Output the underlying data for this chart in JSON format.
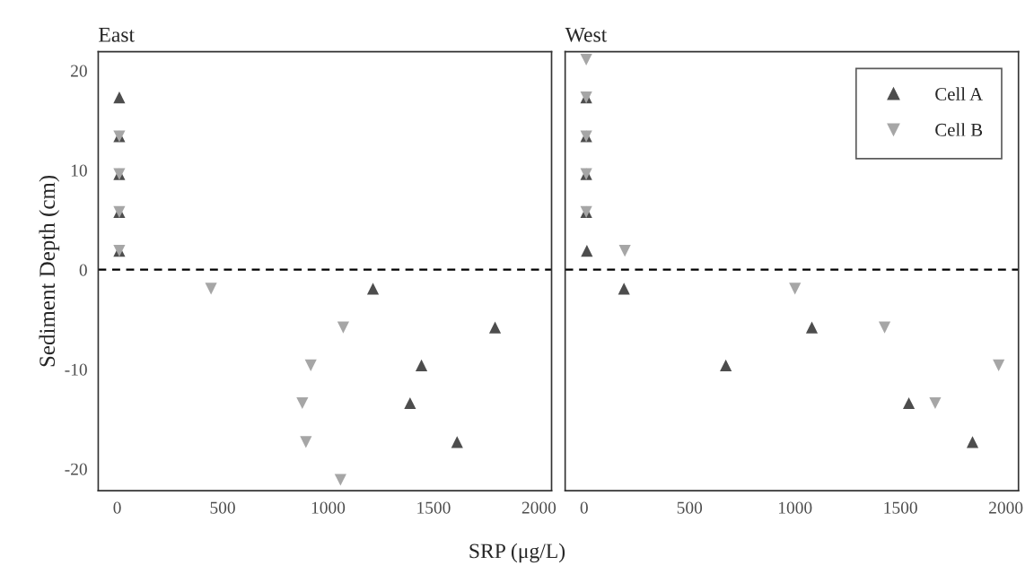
{
  "chart_data": [
    {
      "type": "scatter",
      "title": "East",
      "xlabel": "SRP (μg/L)",
      "ylabel": "Sediment Depth (cm)",
      "xlim": [
        -90,
        2060
      ],
      "xticks": [
        0,
        500,
        1000,
        1500,
        2000
      ],
      "ylim": [
        -22.2,
        21.9
      ],
      "yticks": [
        -20,
        -10,
        0,
        10,
        20
      ],
      "grid": false,
      "legend": false,
      "ref_lines": [
        {
          "axis": "y",
          "value": 0,
          "color": "#000000",
          "line_style": "dashed"
        }
      ],
      "series": [
        {
          "color": "#4d4d4d",
          "marker": "triangle",
          "x": [
            10,
            10,
            10,
            10,
            10,
            1213,
            1792,
            1443,
            1389,
            1612
          ],
          "values": [
            17.3,
            13.4,
            9.6,
            5.8,
            1.9,
            -1.9,
            -5.8,
            -9.6,
            -13.4,
            -17.3
          ]
        },
        {
          "color": "#a6a6a6",
          "marker": "triangle_down",
          "x": [
            10,
            10,
            10,
            10,
            445,
            1072,
            918,
            878,
            895,
            1059
          ],
          "values": [
            13.4,
            9.6,
            5.8,
            1.9,
            -1.9,
            -5.8,
            -9.6,
            -13.4,
            -17.3,
            -21.1
          ]
        }
      ]
    },
    {
      "type": "scatter",
      "title": "West",
      "xlim": [
        -90,
        2060
      ],
      "xticks": [
        0,
        500,
        1000,
        1500,
        2000
      ],
      "ylim": [
        -22.2,
        21.9
      ],
      "yticks": [
        -20,
        -10,
        0,
        10,
        20
      ],
      "tick_labels": "x",
      "grid": false,
      "legend": "top right",
      "ref_lines": [
        {
          "axis": "y",
          "value": 0,
          "color": "#000000",
          "line_style": "dashed"
        }
      ],
      "series": [
        {
          "name": "Cell A",
          "color": "#4d4d4d",
          "marker": "triangle",
          "x": [
            10,
            10,
            10,
            10,
            13,
            189,
            1080,
            672,
            1540,
            1842
          ],
          "values": [
            17.3,
            13.4,
            9.6,
            5.8,
            1.9,
            -1.9,
            -5.8,
            -9.6,
            -13.4,
            -17.3
          ]
        },
        {
          "name": "Cell B",
          "color": "#a6a6a6",
          "marker": "triangle_down",
          "x": [
            10,
            10,
            10,
            10,
            10,
            193,
            1000,
            1425,
            1966,
            1665
          ],
          "values": [
            21.1,
            17.3,
            13.4,
            9.6,
            5.8,
            1.9,
            -1.9,
            -5.8,
            -9.6,
            -13.4
          ]
        }
      ]
    }
  ]
}
